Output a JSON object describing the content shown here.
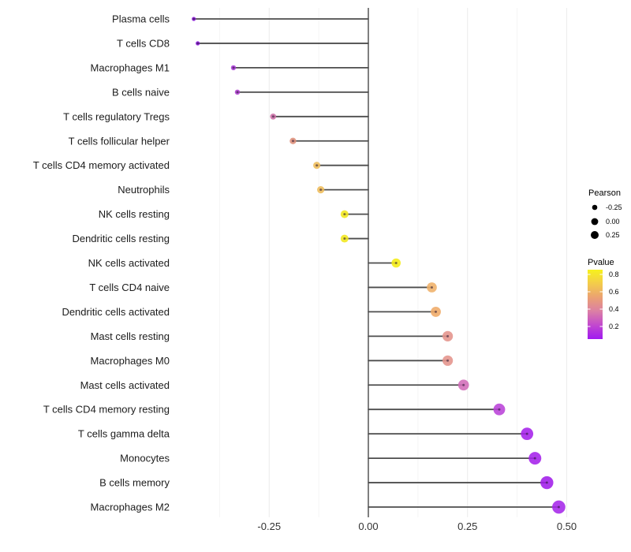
{
  "chart_data": {
    "type": "lollipop",
    "title": "",
    "xlabel": "",
    "ylabel": "",
    "xlim": [
      -0.5,
      0.56
    ],
    "x_ticks": [
      -0.25,
      0.0,
      0.25,
      0.5
    ],
    "x_tick_labels": [
      "-0.25",
      "0.00",
      "0.25",
      "0.50"
    ],
    "grid": "vertical-only",
    "baseline": 0,
    "points": [
      {
        "label": "Plasma cells",
        "pearson": -0.44,
        "pvalue": 0.1,
        "color": "#8E17E2"
      },
      {
        "label": "T cells CD8",
        "pearson": -0.43,
        "pvalue": 0.1,
        "color": "#8E17E2"
      },
      {
        "label": "Macrophages M1",
        "pearson": -0.34,
        "pvalue": 0.2,
        "color": "#AC3BDB"
      },
      {
        "label": "B cells naive",
        "pearson": -0.33,
        "pvalue": 0.22,
        "color": "#B040D2"
      },
      {
        "label": "T cells regulatory  Tregs",
        "pearson": -0.24,
        "pvalue": 0.38,
        "color": "#CC6FA6"
      },
      {
        "label": "T cells follicular helper",
        "pearson": -0.19,
        "pvalue": 0.52,
        "color": "#DE8E79"
      },
      {
        "label": "T cells CD4 memory activated",
        "pearson": -0.13,
        "pvalue": 0.62,
        "color": "#EEBC5A"
      },
      {
        "label": "Neutrophils",
        "pearson": -0.12,
        "pvalue": 0.62,
        "color": "#EEBC5A"
      },
      {
        "label": "NK cells resting",
        "pearson": -0.06,
        "pvalue": 0.82,
        "color": "#F1E71B"
      },
      {
        "label": "Dendritic cells resting",
        "pearson": -0.06,
        "pvalue": 0.82,
        "color": "#F1E71B"
      },
      {
        "label": "NK cells activated",
        "pearson": 0.07,
        "pvalue": 0.85,
        "color": "#F4EC12"
      },
      {
        "label": "T cells CD4 naive",
        "pearson": 0.16,
        "pvalue": 0.6,
        "color": "#EFB169"
      },
      {
        "label": "Dendritic cells activated",
        "pearson": 0.17,
        "pvalue": 0.58,
        "color": "#EFAA66"
      },
      {
        "label": "Mast cells resting",
        "pearson": 0.2,
        "pvalue": 0.5,
        "color": "#E4938B"
      },
      {
        "label": "Macrophages M0",
        "pearson": 0.2,
        "pvalue": 0.5,
        "color": "#E4938B"
      },
      {
        "label": "Mast cells activated",
        "pearson": 0.24,
        "pvalue": 0.38,
        "color": "#D16CB8"
      },
      {
        "label": "T cells CD4 memory resting",
        "pearson": 0.33,
        "pvalue": 0.25,
        "color": "#B942D8"
      },
      {
        "label": "T cells gamma delta",
        "pearson": 0.4,
        "pvalue": 0.15,
        "color": "#A521EA"
      },
      {
        "label": "Monocytes",
        "pearson": 0.42,
        "pvalue": 0.15,
        "color": "#A521EA"
      },
      {
        "label": "B cells memory",
        "pearson": 0.45,
        "pvalue": 0.12,
        "color": "#A01DE9"
      },
      {
        "label": "Macrophages M2",
        "pearson": 0.48,
        "pvalue": 0.13,
        "color": "#A527E9"
      }
    ],
    "legend_size": {
      "title": "Pearson",
      "entries": [
        {
          "label": "-0.25",
          "value": -0.25
        },
        {
          "label": "0.00",
          "value": 0.0
        },
        {
          "label": "0.25",
          "value": 0.25
        }
      ],
      "dot_color": "#000000"
    },
    "legend_color": {
      "title": "Pvalue",
      "tick_labels": [
        "0.8",
        "0.6",
        "0.4",
        "0.2"
      ],
      "gradient_top_to_bottom": [
        "#F6F21D",
        "#F3CC4B",
        "#EBA173",
        "#DB7FA5",
        "#C248CF",
        "#A019F0"
      ]
    },
    "colors": {
      "stem": "#4D4D4D",
      "zero_line": "#2B2B2B",
      "grid_major": "#ECECEC",
      "grid_minor": "#F5F5F5",
      "text": "#1C1C1C",
      "background": "#FFFFFF"
    }
  }
}
